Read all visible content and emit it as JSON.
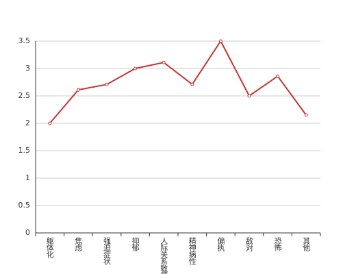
{
  "chart_data": {
    "type": "line",
    "categories": [
      "躯体化",
      "焦虑",
      "强迫症状",
      "抑郁",
      "人际关系敏感",
      "精神病性",
      "偏执",
      "敌对",
      "恐怖",
      "其他"
    ],
    "series": [
      {
        "color": "#c23531",
        "values": [
          2.0,
          2.61,
          2.71,
          3.0,
          3.11,
          2.71,
          3.5,
          2.5,
          2.86,
          2.15
        ]
      }
    ],
    "ylim": [
      0,
      3.5
    ],
    "yticks": [
      0,
      0.5,
      1,
      1.5,
      2,
      2.5,
      3,
      3.5
    ],
    "grid": true
  }
}
